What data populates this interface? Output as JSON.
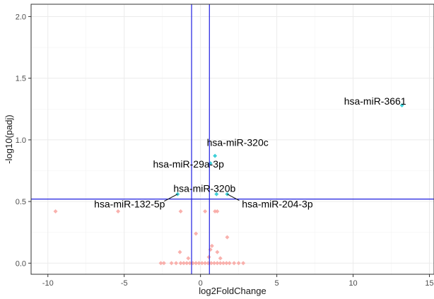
{
  "chart_data": {
    "type": "scatter",
    "title": "",
    "xlabel": "log2FoldChange",
    "ylabel": "-log10(padj)",
    "xlim": [
      -11.1,
      15.3
    ],
    "ylim": [
      -0.09,
      2.1
    ],
    "x_ticks": [
      -10,
      -5,
      0,
      5,
      10,
      15
    ],
    "y_ticks": [
      0.0,
      0.5,
      1.0,
      1.5,
      2.0
    ],
    "grid": true,
    "legend": "none",
    "colors": {
      "highlight": "#3fd0d8",
      "background": "#f8a39f",
      "threshold_lines": "#1f1fe0",
      "frame": "#333333",
      "grid": "#ebebeb"
    },
    "thresholds": {
      "vertical_x": [
        -0.585,
        0.585
      ],
      "horizontal_y": 0.52
    },
    "highlighted_points": [
      {
        "label": "hsa-miR-3661",
        "x": 13.2,
        "y": 1.28
      },
      {
        "label": "hsa-miR-320c",
        "x": 0.95,
        "y": 0.87
      },
      {
        "label": "hsa-miR-29a-3p",
        "x": 0.65,
        "y": 0.81
      },
      {
        "label": "hsa-miR-320b",
        "x": 1.05,
        "y": 0.56
      },
      {
        "label": "hsa-miR-132-5p",
        "x": -1.5,
        "y": 0.56
      },
      {
        "label": "hsa-miR-204-3p",
        "x": 1.75,
        "y": 0.56
      }
    ],
    "other_points": [
      {
        "x": -9.5,
        "y": 0.42
      },
      {
        "x": -5.4,
        "y": 0.42
      },
      {
        "x": -1.3,
        "y": 0.42
      },
      {
        "x": 0.3,
        "y": 0.42
      },
      {
        "x": 0.95,
        "y": 0.42
      },
      {
        "x": 1.1,
        "y": 0.42
      },
      {
        "x": -0.3,
        "y": 0.24
      },
      {
        "x": 1.75,
        "y": 0.21
      },
      {
        "x": 0.75,
        "y": 0.14
      },
      {
        "x": 0.65,
        "y": 0.11
      },
      {
        "x": -1.35,
        "y": 0.09
      },
      {
        "x": 1.1,
        "y": 0.09
      },
      {
        "x": 0.55,
        "y": 0.05
      },
      {
        "x": 1.3,
        "y": 0.04
      },
      {
        "x": -0.8,
        "y": 0.04
      },
      {
        "x": -2.6,
        "y": 0.0
      },
      {
        "x": -2.4,
        "y": 0.0
      },
      {
        "x": -1.9,
        "y": 0.0
      },
      {
        "x": -1.6,
        "y": 0.0
      },
      {
        "x": -1.3,
        "y": 0.0
      },
      {
        "x": -1.1,
        "y": 0.0
      },
      {
        "x": -0.9,
        "y": 0.0
      },
      {
        "x": -0.7,
        "y": 0.0
      },
      {
        "x": -0.5,
        "y": 0.0
      },
      {
        "x": -0.3,
        "y": 0.0
      },
      {
        "x": -0.1,
        "y": 0.0
      },
      {
        "x": 0.1,
        "y": 0.0
      },
      {
        "x": 0.3,
        "y": 0.0
      },
      {
        "x": 0.5,
        "y": 0.0
      },
      {
        "x": 0.7,
        "y": 0.0
      },
      {
        "x": 0.9,
        "y": 0.0
      },
      {
        "x": 1.1,
        "y": 0.0
      },
      {
        "x": 1.3,
        "y": 0.0
      },
      {
        "x": 1.5,
        "y": 0.0
      },
      {
        "x": 1.7,
        "y": 0.0
      },
      {
        "x": 1.9,
        "y": 0.0
      },
      {
        "x": 2.2,
        "y": 0.0
      },
      {
        "x": 2.5,
        "y": 0.0
      },
      {
        "x": 2.8,
        "y": 0.0
      }
    ]
  }
}
